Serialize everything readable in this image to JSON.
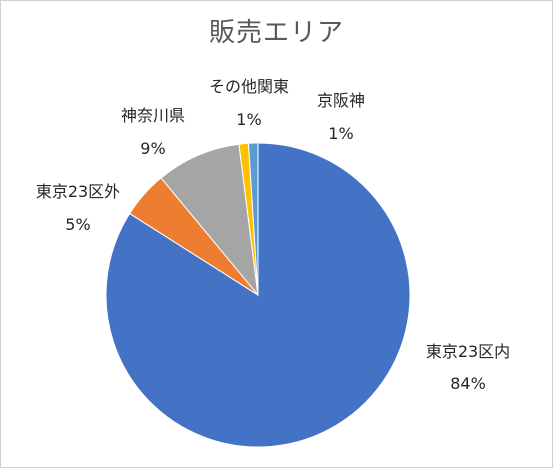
{
  "chart_data": {
    "type": "pie",
    "title": "販売エリア",
    "slices": [
      {
        "label": "東京23区内",
        "value": 84,
        "display": "84%",
        "color": "#4472C4"
      },
      {
        "label": "東京23区外",
        "value": 5,
        "display": "5%",
        "color": "#ED7D31"
      },
      {
        "label": "神奈川県",
        "value": 9,
        "display": "9%",
        "color": "#A5A5A5"
      },
      {
        "label": "その他関東",
        "value": 1,
        "display": "1%",
        "color": "#FFC000"
      },
      {
        "label": "京阪神",
        "value": 1,
        "display": "1%",
        "color": "#5B9BD5"
      }
    ]
  }
}
